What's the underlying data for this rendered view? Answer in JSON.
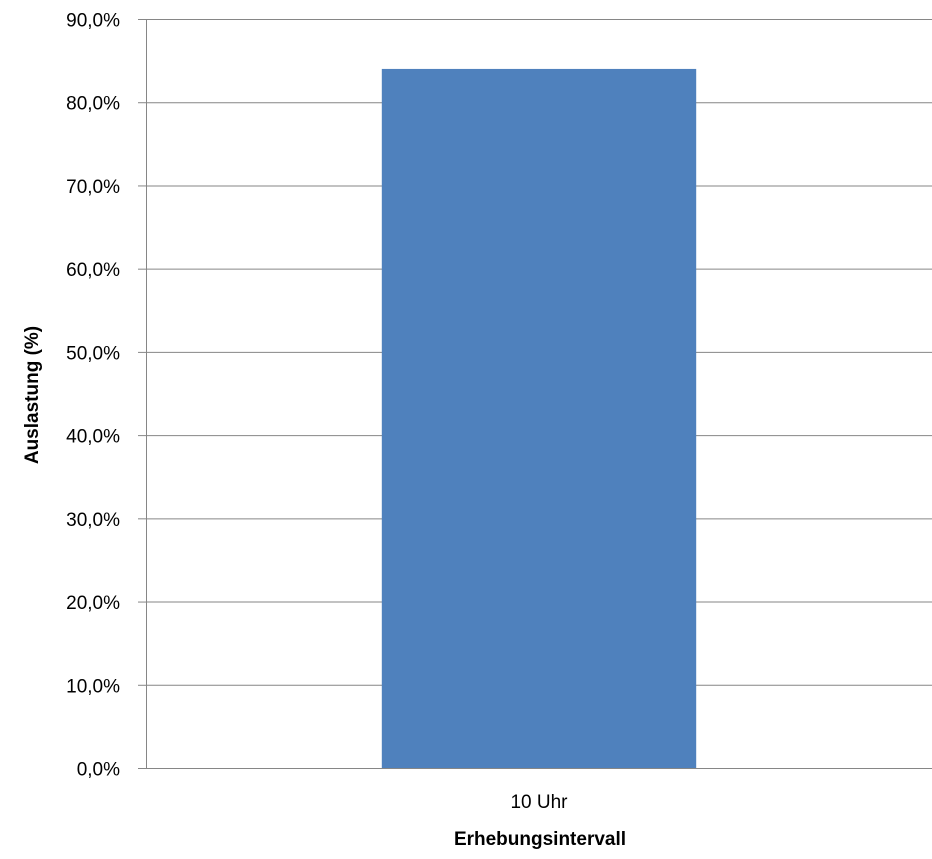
{
  "chart_data": {
    "type": "bar",
    "title": "",
    "xlabel": "Erhebungsintervall",
    "ylabel": "Auslastung (%)",
    "categories": [
      "10 Uhr"
    ],
    "series": [
      {
        "values": [
          84.0
        ]
      }
    ],
    "ylim": [
      0,
      90
    ],
    "yticks": [
      0,
      10,
      20,
      30,
      40,
      50,
      60,
      70,
      80,
      90
    ],
    "ytick_labels": [
      "0,0%",
      "10,0%",
      "20,0%",
      "30,0%",
      "40,0%",
      "50,0%",
      "60,0%",
      "70,0%",
      "80,0%",
      "90,0%"
    ],
    "grid": true,
    "legend": "none",
    "colors": {
      "bar": "#4f81bd",
      "grid": "#868686",
      "axis": "#868686"
    }
  }
}
